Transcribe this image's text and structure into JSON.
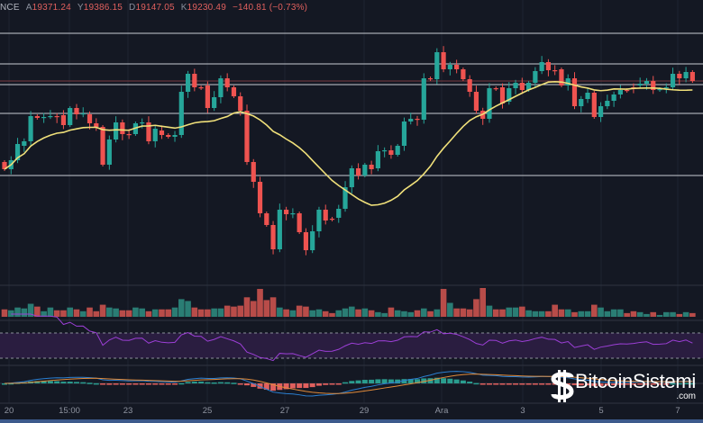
{
  "header": {
    "symbol_fragment": "NCE",
    "open_label": "A",
    "open": "19371.24",
    "high_label": "Y",
    "high": "19386.15",
    "low_label": "D",
    "low": "19147.05",
    "close_label": "K",
    "close": "19230.49",
    "change": "−140.81 (−0.73%)"
  },
  "colors": {
    "up": "#26a69a",
    "down": "#ef5350",
    "ma": "#f0e07a",
    "rsi": "#9c3fd6",
    "background": "#141823"
  },
  "x_axis": {
    "labels": [
      "20",
      "15:00",
      "23",
      "25",
      "27",
      "29",
      "Ara",
      "3",
      "5",
      "7"
    ]
  },
  "watermark": {
    "name": "BitcoinSistemi",
    "suffix": ".com"
  },
  "chart_data": {
    "type": "candlestick",
    "price_levels": [
      19760,
      19420,
      19190,
      18870,
      18180
    ],
    "last_price": 19230.49,
    "ma_period": 20,
    "candles_open_close": [
      [
        18330,
        18250
      ],
      [
        18250,
        18350
      ],
      [
        18350,
        18530
      ],
      [
        18510,
        18560
      ],
      [
        18560,
        18840
      ],
      [
        18840,
        18820
      ],
      [
        18820,
        18830
      ],
      [
        18840,
        18840
      ],
      [
        18840,
        18830
      ],
      [
        18850,
        18740
      ],
      [
        18740,
        18930
      ],
      [
        18930,
        18860
      ],
      [
        18860,
        18870
      ],
      [
        18860,
        18760
      ],
      [
        18760,
        18720
      ],
      [
        18720,
        18300
      ],
      [
        18300,
        18580
      ],
      [
        18580,
        18770
      ],
      [
        18770,
        18640
      ],
      [
        18640,
        18630
      ],
      [
        18640,
        18760
      ],
      [
        18760,
        18770
      ],
      [
        18770,
        18560
      ],
      [
        18560,
        18700
      ],
      [
        18680,
        18630
      ],
      [
        18630,
        18610
      ],
      [
        18610,
        18630
      ],
      [
        18630,
        19110
      ],
      [
        19110,
        19310
      ],
      [
        19310,
        19160
      ],
      [
        19160,
        19150
      ],
      [
        19180,
        18930
      ],
      [
        18930,
        19050
      ],
      [
        19050,
        19260
      ],
      [
        19260,
        19160
      ],
      [
        19160,
        19060
      ],
      [
        19060,
        18900
      ],
      [
        18900,
        18330
      ],
      [
        18330,
        18110
      ],
      [
        18110,
        17760
      ],
      [
        17760,
        17630
      ],
      [
        17630,
        17360
      ],
      [
        17360,
        17800
      ],
      [
        17800,
        17750
      ],
      [
        17750,
        17760
      ],
      [
        17760,
        17550
      ],
      [
        17550,
        17350
      ],
      [
        17350,
        17560
      ],
      [
        17560,
        17800
      ],
      [
        17800,
        17680
      ],
      [
        17700,
        17690
      ],
      [
        17710,
        17810
      ],
      [
        17810,
        18050
      ],
      [
        18050,
        18260
      ],
      [
        18260,
        18180
      ],
      [
        18180,
        18300
      ],
      [
        18300,
        18250
      ],
      [
        18260,
        18450
      ],
      [
        18450,
        18460
      ],
      [
        18460,
        18410
      ],
      [
        18410,
        18510
      ],
      [
        18510,
        18780
      ],
      [
        18780,
        18810
      ],
      [
        18810,
        18800
      ],
      [
        18800,
        19260
      ],
      [
        19260,
        19250
      ],
      [
        19250,
        19550
      ],
      [
        19550,
        19360
      ],
      [
        19360,
        19410
      ],
      [
        19410,
        19360
      ],
      [
        19360,
        19250
      ],
      [
        19250,
        19110
      ],
      [
        19110,
        18900
      ],
      [
        18900,
        18810
      ],
      [
        18810,
        19150
      ],
      [
        19150,
        19140
      ],
      [
        19160,
        18980
      ],
      [
        19000,
        19150
      ],
      [
        19150,
        19210
      ],
      [
        19210,
        19130
      ],
      [
        19130,
        19210
      ],
      [
        19210,
        19340
      ],
      [
        19340,
        19440
      ],
      [
        19440,
        19350
      ],
      [
        19350,
        19340
      ],
      [
        19360,
        19180
      ],
      [
        19180,
        19260
      ],
      [
        19260,
        18950
      ],
      [
        18950,
        19030
      ],
      [
        19030,
        19100
      ],
      [
        19100,
        18830
      ],
      [
        18830,
        18950
      ],
      [
        18950,
        19010
      ],
      [
        19010,
        19080
      ],
      [
        19080,
        19130
      ],
      [
        19130,
        19120
      ],
      [
        19160,
        19150
      ],
      [
        19180,
        19200
      ],
      [
        19200,
        19230
      ],
      [
        19230,
        19130
      ],
      [
        19130,
        19140
      ],
      [
        19150,
        19160
      ],
      [
        19160,
        19310
      ],
      [
        19310,
        19260
      ],
      [
        19260,
        19330
      ],
      [
        19330,
        19230
      ]
    ],
    "volume": [
      8,
      7,
      10,
      9,
      14,
      11,
      6,
      10,
      7,
      7,
      10,
      8,
      6,
      10,
      6,
      13,
      10,
      9,
      7,
      7,
      10,
      9,
      6,
      8,
      8,
      8,
      10,
      19,
      17,
      10,
      8,
      8,
      9,
      9,
      12,
      11,
      12,
      21,
      17,
      30,
      18,
      21,
      10,
      8,
      7,
      12,
      11,
      7,
      8,
      6,
      4,
      7,
      9,
      11,
      8,
      9,
      7,
      5,
      4,
      10,
      7,
      6,
      5,
      7,
      9,
      6,
      8,
      30,
      15,
      9,
      9,
      8,
      19,
      31,
      12,
      8,
      8,
      10,
      10,
      11,
      7,
      6,
      6,
      6,
      13,
      8,
      8,
      5,
      6,
      6,
      13,
      10,
      6,
      8,
      8,
      4,
      6,
      5,
      3,
      5,
      2,
      5,
      5,
      3,
      5,
      4
    ],
    "rsi_bounds": [
      30,
      70
    ]
  }
}
